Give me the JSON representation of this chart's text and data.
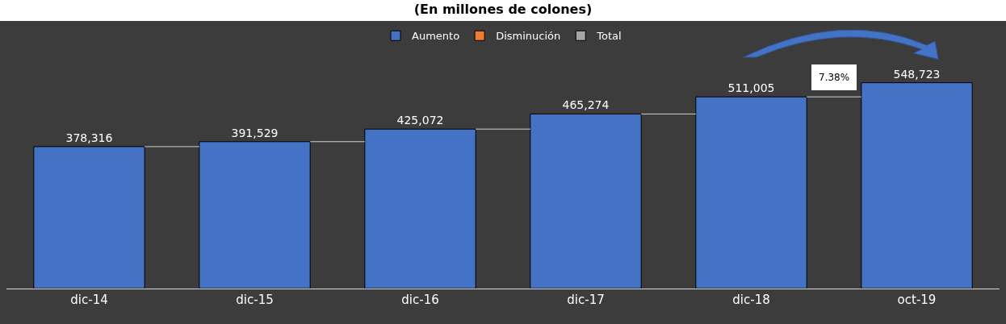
{
  "chart_data": {
    "type": "bar",
    "title": "(En millones de colones)",
    "categories": [
      "dic-14",
      "dic-15",
      "dic-16",
      "dic-17",
      "dic-18",
      "oct-19"
    ],
    "series": [
      {
        "name": "Aumento",
        "color": "#4472c4",
        "values": [
          378316,
          391529,
          425072,
          465274,
          511005,
          548723
        ],
        "value_labels": [
          "378,316",
          "391,529",
          "425,072",
          "465,274",
          "511,005",
          "548,723"
        ]
      },
      {
        "name": "Disminución",
        "color": "#ed7d31",
        "values": [
          null,
          null,
          null,
          null,
          null,
          null
        ]
      },
      {
        "name": "Total",
        "color": "#a5a5a5",
        "values": [
          null,
          null,
          null,
          null,
          null,
          null
        ]
      }
    ],
    "annotations": [
      "7.38%"
    ],
    "legend": "top",
    "grid": false
  }
}
